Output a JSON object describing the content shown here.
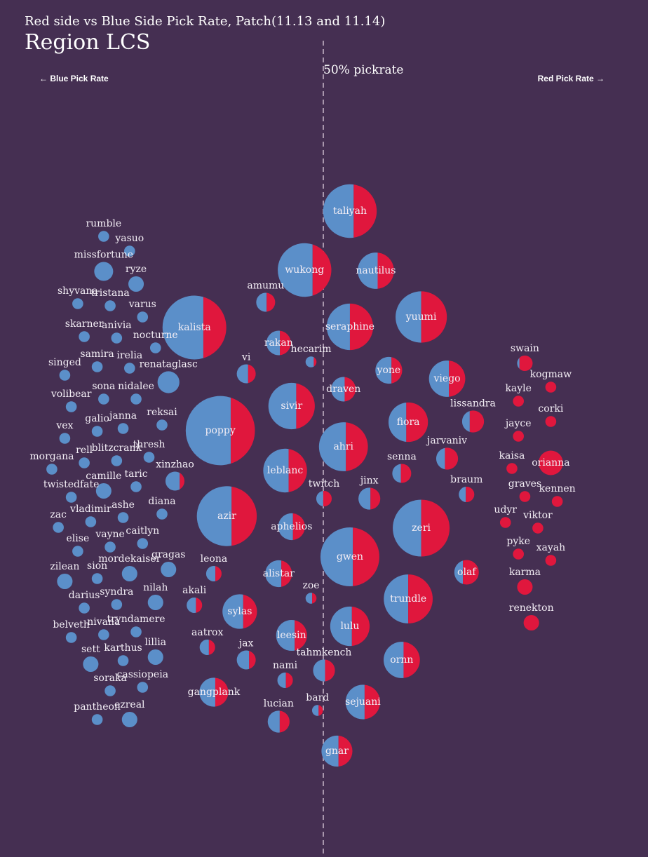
{
  "title": "Red side vs Blue Side Pick Rate, Patch(11.13 and 11.14)",
  "subtitle": "Region LCS",
  "left_label": "← Blue Pick Rate",
  "right_label": "Red Pick Rate →",
  "midline_label": "50% pickrate",
  "colors": {
    "background": "#452f52",
    "blue": "#5b8fc9",
    "red": "#e0173d",
    "midline": "#c9b9c9"
  },
  "chart_data": {
    "type": "bubble-split",
    "title": "Red side vs Blue Side Pick Rate, Patch(11.13 and 11.14)",
    "subtitle": "Region LCS",
    "x_meaning": "red side share of picks",
    "xlim": [
      0,
      1
    ],
    "midline": 0.5,
    "items": [
      {
        "name": "taliyah",
        "x": 0.54,
        "picks": 24,
        "red": 0.43
      },
      {
        "name": "wukong",
        "x": 0.47,
        "picks": 24,
        "red": 0.35
      },
      {
        "name": "nautilus",
        "x": 0.58,
        "picks": 11,
        "red": 0.45
      },
      {
        "name": "kalista",
        "x": 0.3,
        "picks": 34,
        "red": 0.36
      },
      {
        "name": "amumu",
        "x": 0.41,
        "picks": 3,
        "red": 0.45
      },
      {
        "name": "seraphine",
        "x": 0.54,
        "picks": 18,
        "red": 0.5
      },
      {
        "name": "yuumi",
        "x": 0.65,
        "picks": 22,
        "red": 0.5
      },
      {
        "name": "rakan",
        "x": 0.43,
        "picks": 5,
        "red": 0.45
      },
      {
        "name": "hecarim",
        "x": 0.48,
        "picks": 1,
        "red": 0.25
      },
      {
        "name": "vi",
        "x": 0.38,
        "picks": 3,
        "red": 0.4
      },
      {
        "name": "yone",
        "x": 0.6,
        "picks": 6,
        "red": 0.4
      },
      {
        "name": "viego",
        "x": 0.69,
        "picks": 11,
        "red": 0.45
      },
      {
        "name": "swain",
        "x": 0.81,
        "picks": 2,
        "red": 0.85
      },
      {
        "name": "kogmaw",
        "x": 0.85,
        "picks": 1,
        "red": 1
      },
      {
        "name": "renataglasc",
        "x": 0.26,
        "picks": 4,
        "red": 0
      },
      {
        "name": "sivir",
        "x": 0.45,
        "picks": 18,
        "red": 0.4
      },
      {
        "name": "draven",
        "x": 0.53,
        "picks": 5,
        "red": 0.45
      },
      {
        "name": "kayle",
        "x": 0.8,
        "picks": 1,
        "red": 1
      },
      {
        "name": "poppy",
        "x": 0.34,
        "picks": 40,
        "red": 0.35
      },
      {
        "name": "fiora",
        "x": 0.63,
        "picks": 13,
        "red": 0.55
      },
      {
        "name": "lissandra",
        "x": 0.73,
        "picks": 4,
        "red": 0.65
      },
      {
        "name": "corki",
        "x": 0.85,
        "picks": 1,
        "red": 1
      },
      {
        "name": "jayce",
        "x": 0.8,
        "picks": 1,
        "red": 1
      },
      {
        "name": "ahri",
        "x": 0.53,
        "picks": 20,
        "red": 0.45
      },
      {
        "name": "jarvaniv",
        "x": 0.69,
        "picks": 4,
        "red": 0.6
      },
      {
        "name": "kaisa",
        "x": 0.79,
        "picks": 1,
        "red": 1
      },
      {
        "name": "orianna",
        "x": 0.85,
        "picks": 5,
        "red": 1
      },
      {
        "name": "leblanc",
        "x": 0.44,
        "picks": 16,
        "red": 0.42
      },
      {
        "name": "senna",
        "x": 0.62,
        "picks": 3,
        "red": 0.55
      },
      {
        "name": "twitch",
        "x": 0.5,
        "picks": 2,
        "red": 0.55
      },
      {
        "name": "jinx",
        "x": 0.57,
        "picks": 4,
        "red": 0.45
      },
      {
        "name": "braum",
        "x": 0.72,
        "picks": 2,
        "red": 0.55
      },
      {
        "name": "graves",
        "x": 0.81,
        "picks": 1,
        "red": 1
      },
      {
        "name": "kennen",
        "x": 0.86,
        "picks": 1,
        "red": 1
      },
      {
        "name": "xinzhao",
        "x": 0.27,
        "picks": 3,
        "red": 0.25
      },
      {
        "name": "udyr",
        "x": 0.78,
        "picks": 1,
        "red": 1
      },
      {
        "name": "viktor",
        "x": 0.83,
        "picks": 1,
        "red": 1
      },
      {
        "name": "azir",
        "x": 0.35,
        "picks": 30,
        "red": 0.42
      },
      {
        "name": "aphelios",
        "x": 0.45,
        "picks": 6,
        "red": 0.45
      },
      {
        "name": "zeri",
        "x": 0.65,
        "picks": 27,
        "red": 0.5
      },
      {
        "name": "gwen",
        "x": 0.54,
        "picks": 29,
        "red": 0.45
      },
      {
        "name": "pyke",
        "x": 0.8,
        "picks": 1,
        "red": 1
      },
      {
        "name": "xayah",
        "x": 0.85,
        "picks": 1,
        "red": 1
      },
      {
        "name": "gragas",
        "x": 0.26,
        "picks": 2,
        "red": 0
      },
      {
        "name": "leona",
        "x": 0.33,
        "picks": 2,
        "red": 0.4
      },
      {
        "name": "alistar",
        "x": 0.43,
        "picks": 6,
        "red": 0.4
      },
      {
        "name": "olaf",
        "x": 0.72,
        "picks": 5,
        "red": 0.65
      },
      {
        "name": "karma",
        "x": 0.81,
        "picks": 2,
        "red": 1
      },
      {
        "name": "zoe",
        "x": 0.48,
        "picks": 1,
        "red": 0.4
      },
      {
        "name": "trundle",
        "x": 0.63,
        "picks": 20,
        "red": 0.5
      },
      {
        "name": "akali",
        "x": 0.3,
        "picks": 2,
        "red": 0.4
      },
      {
        "name": "sylas",
        "x": 0.37,
        "picks": 10,
        "red": 0.4
      },
      {
        "name": "renekton",
        "x": 0.82,
        "picks": 2,
        "red": 1
      },
      {
        "name": "lulu",
        "x": 0.54,
        "picks": 13,
        "red": 0.45
      },
      {
        "name": "leesin",
        "x": 0.45,
        "picks": 8,
        "red": 0.4
      },
      {
        "name": "aatrox",
        "x": 0.32,
        "picks": 2,
        "red": 0.4
      },
      {
        "name": "ornn",
        "x": 0.62,
        "picks": 11,
        "red": 0.45
      },
      {
        "name": "jax",
        "x": 0.38,
        "picks": 3,
        "red": 0.35
      },
      {
        "name": "nami",
        "x": 0.44,
        "picks": 2,
        "red": 0.45
      },
      {
        "name": "tahmkench",
        "x": 0.5,
        "picks": 4,
        "red": 0.45
      },
      {
        "name": "gangplank",
        "x": 0.33,
        "picks": 7,
        "red": 0.45
      },
      {
        "name": "bard",
        "x": 0.49,
        "picks": 1,
        "red": 0.4
      },
      {
        "name": "sejuani",
        "x": 0.56,
        "picks": 10,
        "red": 0.45
      },
      {
        "name": "lucian",
        "x": 0.43,
        "picks": 4,
        "red": 0.45
      },
      {
        "name": "gnar",
        "x": 0.52,
        "picks": 8,
        "red": 0.45
      },
      {
        "name": "rumble",
        "x": 0.16,
        "picks": 1,
        "red": 0
      },
      {
        "name": "yasuo",
        "x": 0.2,
        "picks": 1,
        "red": 0
      },
      {
        "name": "missfortune",
        "x": 0.16,
        "picks": 3,
        "red": 0
      },
      {
        "name": "ryze",
        "x": 0.21,
        "picks": 2,
        "red": 0
      },
      {
        "name": "shyvana",
        "x": 0.12,
        "picks": 1,
        "red": 0
      },
      {
        "name": "tristana",
        "x": 0.17,
        "picks": 1,
        "red": 0
      },
      {
        "name": "varus",
        "x": 0.22,
        "picks": 1,
        "red": 0
      },
      {
        "name": "skarner",
        "x": 0.13,
        "picks": 1,
        "red": 0
      },
      {
        "name": "anivia",
        "x": 0.18,
        "picks": 1,
        "red": 0
      },
      {
        "name": "nocturne",
        "x": 0.24,
        "picks": 1,
        "red": 0
      },
      {
        "name": "samira",
        "x": 0.15,
        "picks": 1,
        "red": 0
      },
      {
        "name": "irelia",
        "x": 0.2,
        "picks": 1,
        "red": 0
      },
      {
        "name": "singed",
        "x": 0.1,
        "picks": 1,
        "red": 0
      },
      {
        "name": "sona",
        "x": 0.16,
        "picks": 1,
        "red": 0
      },
      {
        "name": "nidalee",
        "x": 0.21,
        "picks": 1,
        "red": 0
      },
      {
        "name": "volibear",
        "x": 0.11,
        "picks": 1,
        "red": 0
      },
      {
        "name": "galio",
        "x": 0.15,
        "picks": 1,
        "red": 0
      },
      {
        "name": "janna",
        "x": 0.19,
        "picks": 1,
        "red": 0
      },
      {
        "name": "reksai",
        "x": 0.25,
        "picks": 1,
        "red": 0
      },
      {
        "name": "vex",
        "x": 0.1,
        "picks": 1,
        "red": 0
      },
      {
        "name": "blitzcrank",
        "x": 0.18,
        "picks": 1,
        "red": 0
      },
      {
        "name": "thresh",
        "x": 0.23,
        "picks": 1,
        "red": 0
      },
      {
        "name": "rell",
        "x": 0.13,
        "picks": 1,
        "red": 0
      },
      {
        "name": "morgana",
        "x": 0.08,
        "picks": 1,
        "red": 0
      },
      {
        "name": "camille",
        "x": 0.16,
        "picks": 2,
        "red": 0
      },
      {
        "name": "taric",
        "x": 0.21,
        "picks": 1,
        "red": 0
      },
      {
        "name": "twistedfate",
        "x": 0.11,
        "picks": 1,
        "red": 0
      },
      {
        "name": "vladimir",
        "x": 0.14,
        "picks": 1,
        "red": 0
      },
      {
        "name": "ashe",
        "x": 0.19,
        "picks": 1,
        "red": 0
      },
      {
        "name": "diana",
        "x": 0.25,
        "picks": 1,
        "red": 0
      },
      {
        "name": "zac",
        "x": 0.09,
        "picks": 1,
        "red": 0
      },
      {
        "name": "elise",
        "x": 0.12,
        "picks": 1,
        "red": 0
      },
      {
        "name": "vayne",
        "x": 0.17,
        "picks": 1,
        "red": 0
      },
      {
        "name": "caitlyn",
        "x": 0.22,
        "picks": 1,
        "red": 0
      },
      {
        "name": "zilean",
        "x": 0.1,
        "picks": 2,
        "red": 0
      },
      {
        "name": "sion",
        "x": 0.15,
        "picks": 1,
        "red": 0
      },
      {
        "name": "mordekaiser",
        "x": 0.2,
        "picks": 2,
        "red": 0
      },
      {
        "name": "darius",
        "x": 0.13,
        "picks": 1,
        "red": 0
      },
      {
        "name": "syndra",
        "x": 0.18,
        "picks": 1,
        "red": 0
      },
      {
        "name": "nilah",
        "x": 0.24,
        "picks": 2,
        "red": 0
      },
      {
        "name": "belveth",
        "x": 0.11,
        "picks": 1,
        "red": 0
      },
      {
        "name": "nivana",
        "x": 0.16,
        "picks": 1,
        "red": 0
      },
      {
        "name": "tryndamere",
        "x": 0.21,
        "picks": 1,
        "red": 0
      },
      {
        "name": "sett",
        "x": 0.14,
        "picks": 2,
        "red": 0
      },
      {
        "name": "karthus",
        "x": 0.19,
        "picks": 1,
        "red": 0
      },
      {
        "name": "lillia",
        "x": 0.24,
        "picks": 2,
        "red": 0
      },
      {
        "name": "soraka",
        "x": 0.17,
        "picks": 1,
        "red": 0
      },
      {
        "name": "cassiopeia",
        "x": 0.22,
        "picks": 1,
        "red": 0
      },
      {
        "name": "pantheon",
        "x": 0.15,
        "picks": 1,
        "red": 0
      },
      {
        "name": "ezreal",
        "x": 0.2,
        "picks": 2,
        "red": 0
      }
    ]
  }
}
